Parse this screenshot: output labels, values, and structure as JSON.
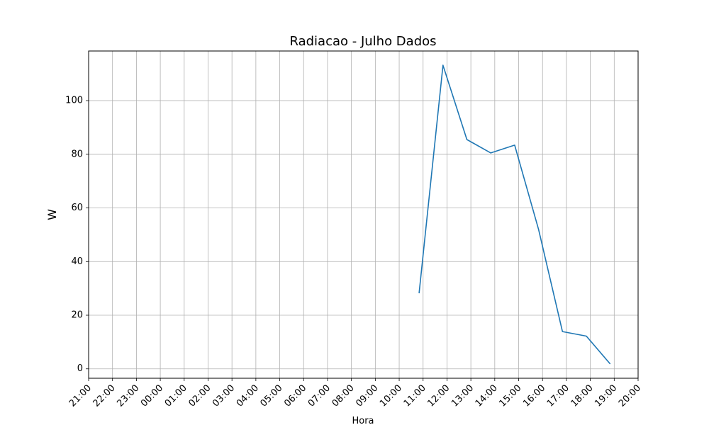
{
  "chart_data": {
    "type": "line",
    "title": "Radiacao - Julho Dados",
    "xlabel": "Hora",
    "ylabel": "W",
    "x_ticks": [
      "21:00",
      "22:00",
      "23:00",
      "00:00",
      "01:00",
      "02:00",
      "03:00",
      "04:00",
      "05:00",
      "06:00",
      "07:00",
      "08:00",
      "09:00",
      "10:00",
      "11:00",
      "12:00",
      "13:00",
      "14:00",
      "15:00",
      "16:00",
      "17:00",
      "18:00",
      "19:00",
      "20:00"
    ],
    "y_ticks": [
      0,
      20,
      40,
      60,
      80,
      100
    ],
    "ylim": [
      -3.5,
      118.5
    ],
    "grid": true,
    "series": [
      {
        "color": "#1f77b4",
        "x": [
          "10:50",
          "11:50",
          "12:50",
          "13:50",
          "14:50",
          "15:50",
          "16:50",
          "17:50",
          "18:50"
        ],
        "y": [
          28.2,
          113.2,
          85.5,
          80.5,
          83.4,
          52.0,
          13.9,
          12.2,
          1.8
        ]
      }
    ]
  }
}
